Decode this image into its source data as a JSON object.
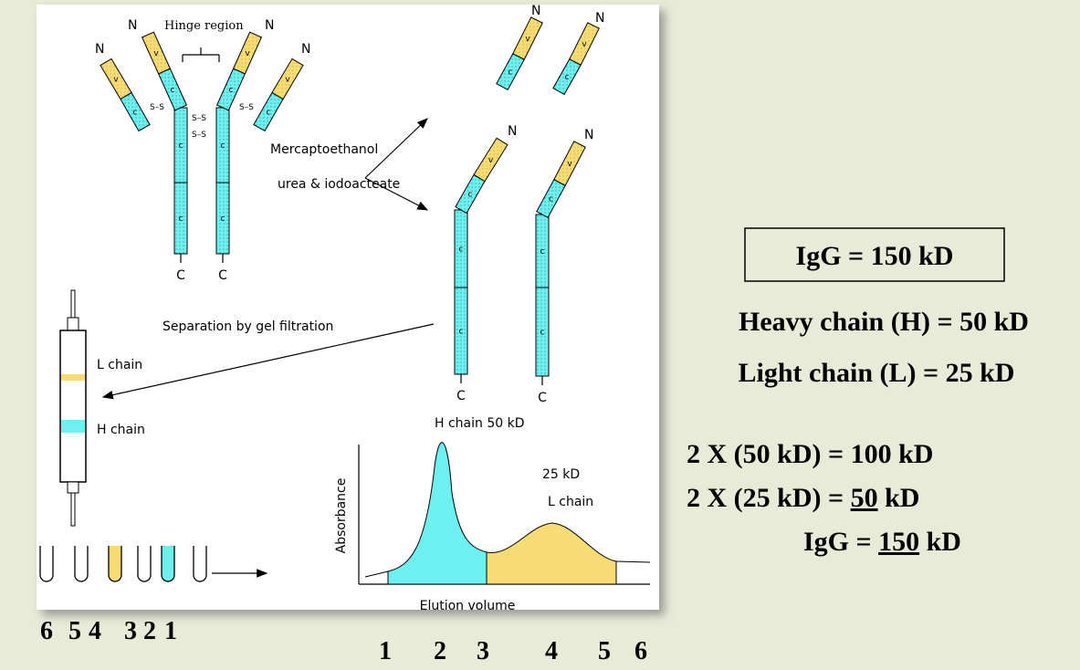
{
  "antibody": {
    "hinge_label": "Hinge region",
    "n_terminus": "N",
    "c_terminus": "C",
    "variable": "v",
    "constant": "c",
    "disulfide": "S–S"
  },
  "reagents": [
    "Mercaptoethanol",
    "urea & iodoacteate"
  ],
  "separation": "Separation by gel filtration",
  "column": {
    "l_band": "L chain",
    "h_band": "H chain"
  },
  "chromatogram": {
    "h_peak": "H chain  50 kD",
    "l_peak_mass": "25 kD",
    "l_peak_name": "L chain",
    "y_label": "Absorbance",
    "x_label": "Elution volume"
  },
  "tube_numbers": [
    "6",
    "5",
    "4",
    "3",
    "2",
    "1"
  ],
  "fraction_numbers": [
    "1",
    "2",
    "3",
    "4",
    "5",
    "6"
  ],
  "summary": {
    "total": "IgG = 150 kD",
    "heavy": "Heavy chain (H) = 50 kD",
    "light": "Light chain (L) = 25 kD"
  },
  "calculation": [
    {
      "prefix": "2 X (50 kD)  = 100 kD"
    },
    {
      "prefix": "2 X (25 kD) = ",
      "underlined": "50",
      "suffix": " kD"
    },
    {
      "prefix": "IgG = ",
      "underlined": "150",
      "suffix": " kD"
    }
  ]
}
